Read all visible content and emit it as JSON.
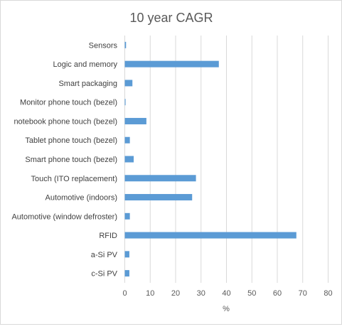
{
  "chart_data": {
    "type": "bar",
    "orientation": "horizontal",
    "title": "10 year CAGR",
    "xlabel": "%",
    "ylabel": "",
    "categories": [
      "Sensors",
      "Logic and memory",
      "Smart packaging",
      "Monitor phone touch (bezel)",
      "notebook phone touch (bezel)",
      "Tablet  phone touch (bezel)",
      "Smart phone touch (bezel)",
      "Touch (ITO replacement)",
      "Automotive (indoors)",
      "Automotive (window defroster)",
      "RFID",
      "a-Si PV",
      "c-Si PV"
    ],
    "values": [
      0.5,
      37,
      3,
      0.3,
      8.5,
      2,
      3.5,
      28,
      26.5,
      2,
      67.5,
      1.8,
      1.8
    ],
    "xlim": [
      0,
      80
    ],
    "xticks": [
      0,
      10,
      20,
      30,
      40,
      50,
      60,
      70,
      80
    ],
    "grid": true,
    "legend": "none",
    "bar_color": "#5b9bd5",
    "grid_color": "#d9d9d9"
  }
}
